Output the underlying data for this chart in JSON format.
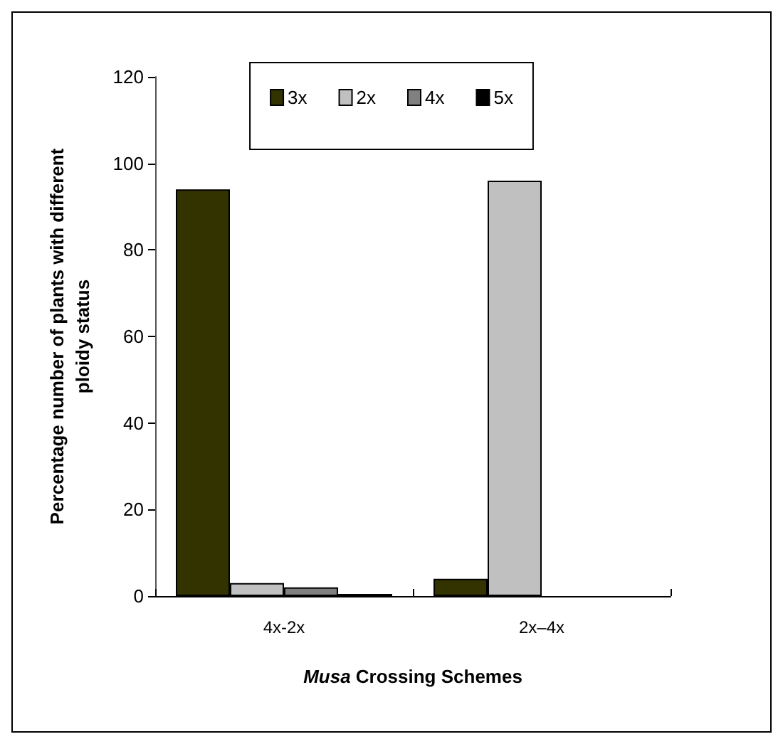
{
  "chart_data": {
    "type": "bar",
    "xlabel": "Musa Crossing Schemes",
    "ylabel": "Percentage number of plants with different\nploidy status",
    "categories": [
      "4x-2x",
      "2x–4x"
    ],
    "series": [
      {
        "name": "3x",
        "color": "#333300",
        "values": [
          94,
          4
        ]
      },
      {
        "name": "2x",
        "color": "#c0c0c0",
        "values": [
          3,
          96
        ]
      },
      {
        "name": "4x",
        "color": "#808080",
        "values": [
          2,
          null
        ]
      },
      {
        "name": "5x",
        "color": "#000000",
        "values": [
          0.5,
          null
        ]
      }
    ],
    "ylim": [
      0,
      120
    ],
    "yticks": [
      0,
      20,
      40,
      60,
      80,
      100,
      120
    ],
    "grid": false,
    "legend": "top"
  }
}
